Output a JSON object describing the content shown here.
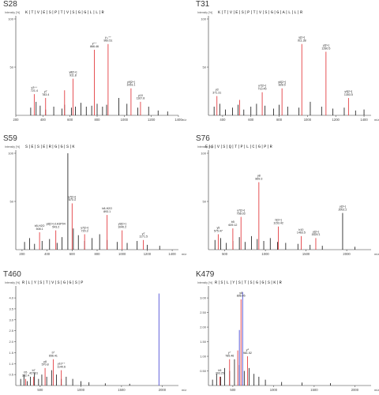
{
  "chart_data": [
    {
      "type": "bar",
      "title": "S28",
      "ylabel": "Intensity [%]",
      "sequence": "K|T|V|E|S|P|T|V|S|G|G|L|L|R",
      "x_ticks": [
        "200",
        "400",
        "600",
        "800",
        "1000",
        "1200",
        "1400"
      ],
      "x_unit": "m/z",
      "y_ticks": [
        "100",
        "50"
      ],
      "xlim": [
        200,
        1400
      ],
      "ylim": [
        0,
        100
      ],
      "peaks_black": [
        {
          "x": 310,
          "y": 8
        },
        {
          "x": 350,
          "y": 14
        },
        {
          "x": 380,
          "y": 10
        },
        {
          "x": 420,
          "y": 6
        },
        {
          "x": 480,
          "y": 9
        },
        {
          "x": 540,
          "y": 7
        },
        {
          "x": 560,
          "y": 11
        },
        {
          "x": 610,
          "y": 8
        },
        {
          "x": 640,
          "y": 9
        },
        {
          "x": 680,
          "y": 13
        },
        {
          "x": 720,
          "y": 9
        },
        {
          "x": 760,
          "y": 10
        },
        {
          "x": 800,
          "y": 12
        },
        {
          "x": 840,
          "y": 9
        },
        {
          "x": 870,
          "y": 11
        },
        {
          "x": 960,
          "y": 18
        },
        {
          "x": 1020,
          "y": 12
        },
        {
          "x": 1100,
          "y": 8
        },
        {
          "x": 1180,
          "y": 9
        },
        {
          "x": 1250,
          "y": 5
        },
        {
          "x": 1320,
          "y": 4
        }
      ],
      "peaks_red": [
        {
          "x": 336,
          "y": 22
        },
        {
          "x": 420,
          "y": 18
        },
        {
          "x": 560,
          "y": 26
        },
        {
          "x": 622,
          "y": 38
        },
        {
          "x": 780,
          "y": 68
        },
        {
          "x": 881,
          "y": 74
        },
        {
          "x": 1050,
          "y": 28
        },
        {
          "x": 1120,
          "y": 14
        }
      ],
      "annotations": [
        {
          "label": "y3⁺⁺",
          "val": "721.4",
          "x": 336,
          "y": 22
        },
        {
          "label": "y7",
          "val": "783.4",
          "x": 420,
          "y": 18
        },
        {
          "label": "y8[2+]",
          "val": "911.8",
          "x": 622,
          "y": 38
        },
        {
          "label": "y⁺⁺",
          "val": "866.46",
          "x": 780,
          "y": 68
        },
        {
          "label": "y₁₁⁺⁺",
          "val": "960.51",
          "x": 881,
          "y": 74
        },
        {
          "label": "y9[2+]",
          "val": "1053.1",
          "x": 1050,
          "y": 28
        },
        {
          "label": "y10",
          "val": "1167.8",
          "x": 1120,
          "y": 14
        }
      ]
    },
    {
      "type": "bar",
      "title": "T31",
      "ylabel": "Intensity [%]",
      "sequence": "K|T|V|E|S|P|T|V|S|G|G|A|L|L|R",
      "x_ticks": [
        "400",
        "600",
        "800",
        "1000",
        "1200",
        "1400"
      ],
      "x_unit": "m/z",
      "y_ticks": [
        "100",
        "50"
      ],
      "xlim": [
        300,
        1450
      ],
      "ylim": [
        0,
        100
      ],
      "peaks_black": [
        {
          "x": 340,
          "y": 9
        },
        {
          "x": 380,
          "y": 12
        },
        {
          "x": 420,
          "y": 6
        },
        {
          "x": 470,
          "y": 8
        },
        {
          "x": 510,
          "y": 11
        },
        {
          "x": 550,
          "y": 6
        },
        {
          "x": 600,
          "y": 9
        },
        {
          "x": 640,
          "y": 12
        },
        {
          "x": 700,
          "y": 10
        },
        {
          "x": 760,
          "y": 7
        },
        {
          "x": 800,
          "y": 11
        },
        {
          "x": 860,
          "y": 9
        },
        {
          "x": 940,
          "y": 8
        },
        {
          "x": 1020,
          "y": 14
        },
        {
          "x": 1100,
          "y": 9
        },
        {
          "x": 1180,
          "y": 7
        },
        {
          "x": 1260,
          "y": 8
        },
        {
          "x": 1340,
          "y": 5
        },
        {
          "x": 1400,
          "y": 6
        }
      ],
      "peaks_red": [
        {
          "x": 360,
          "y": 20
        },
        {
          "x": 520,
          "y": 16
        },
        {
          "x": 680,
          "y": 24
        },
        {
          "x": 820,
          "y": 28
        },
        {
          "x": 960,
          "y": 74
        },
        {
          "x": 1131,
          "y": 66
        },
        {
          "x": 1290,
          "y": 18
        }
      ],
      "annotations": [
        {
          "label": "y3",
          "val": "371.31",
          "x": 360,
          "y": 20
        },
        {
          "label": "y7[2+]",
          "val": "713.45",
          "x": 680,
          "y": 24
        },
        {
          "label": "y6[2+]",
          "val": "828.5",
          "x": 820,
          "y": 28
        },
        {
          "label": "y[2+]",
          "val": "911.38",
          "x": 960,
          "y": 74
        },
        {
          "label": "y[2+]",
          "val": "1280.5",
          "x": 1131,
          "y": 66
        },
        {
          "label": "y9[2+]",
          "val": "1353.5",
          "x": 1290,
          "y": 18
        }
      ]
    },
    {
      "type": "bar",
      "title": "S59",
      "ylabel": "Intensity [%]",
      "sequence": "S|E|S|E|R|G|G|S|K",
      "x_ticks": [
        "200",
        "400",
        "600",
        "800",
        "1000",
        "1200",
        "1400"
      ],
      "x_unit": "m/z",
      "y_ticks": [
        "100",
        "50"
      ],
      "xlim": [
        150,
        1450
      ],
      "ylim": [
        0,
        100
      ],
      "peaks_black": [
        {
          "x": 220,
          "y": 8
        },
        {
          "x": 260,
          "y": 12
        },
        {
          "x": 300,
          "y": 6
        },
        {
          "x": 360,
          "y": 9
        },
        {
          "x": 420,
          "y": 11
        },
        {
          "x": 480,
          "y": 7
        },
        {
          "x": 520,
          "y": 13
        },
        {
          "x": 566,
          "y": 100
        },
        {
          "x": 610,
          "y": 22
        },
        {
          "x": 650,
          "y": 15
        },
        {
          "x": 700,
          "y": 9
        },
        {
          "x": 760,
          "y": 12
        },
        {
          "x": 820,
          "y": 16
        },
        {
          "x": 880,
          "y": 10
        },
        {
          "x": 960,
          "y": 8
        },
        {
          "x": 1040,
          "y": 7
        },
        {
          "x": 1120,
          "y": 9
        },
        {
          "x": 1200,
          "y": 5
        },
        {
          "x": 1300,
          "y": 4
        }
      ],
      "peaks_red": [
        {
          "x": 340,
          "y": 18
        },
        {
          "x": 470,
          "y": 20
        },
        {
          "x": 600,
          "y": 48
        },
        {
          "x": 700,
          "y": 16
        },
        {
          "x": 880,
          "y": 36
        },
        {
          "x": 1000,
          "y": 20
        },
        {
          "x": 1170,
          "y": 10
        }
      ],
      "annotations": [
        {
          "label": "b5-H2O",
          "val": "508.1",
          "x": 340,
          "y": 18
        },
        {
          "label": "y8[2+]-1H3P04",
          "val": "543.2",
          "x": 470,
          "y": 20
        },
        {
          "label": "y7[2+]",
          "val": "670.3",
          "x": 600,
          "y": 48
        },
        {
          "label": "y7[2+]",
          "val": "720.3",
          "x": 700,
          "y": 16
        },
        {
          "label": "b8-H2O",
          "val": "893.1",
          "x": 880,
          "y": 36
        },
        {
          "label": "y9[2+]",
          "val": "1040.2",
          "x": 1000,
          "y": 20
        },
        {
          "label": "y7",
          "val": "1171.5",
          "x": 1170,
          "y": 10
        }
      ]
    },
    {
      "type": "bar",
      "title": "S76",
      "ylabel": "Intensity [%]",
      "sequence": "E|S|V|S|Q|T|P|L|C|G|P|R",
      "x_ticks": [
        "500",
        "1000",
        "1500",
        "2000"
      ],
      "x_unit": "m/z",
      "y_ticks": [
        "100",
        "50"
      ],
      "xlim": [
        300,
        2300
      ],
      "ylim": [
        0,
        100
      ],
      "peaks_black": [
        {
          "x": 380,
          "y": 10
        },
        {
          "x": 450,
          "y": 12
        },
        {
          "x": 520,
          "y": 7
        },
        {
          "x": 600,
          "y": 9
        },
        {
          "x": 680,
          "y": 13
        },
        {
          "x": 750,
          "y": 8
        },
        {
          "x": 830,
          "y": 14
        },
        {
          "x": 900,
          "y": 11
        },
        {
          "x": 980,
          "y": 9
        },
        {
          "x": 1060,
          "y": 12
        },
        {
          "x": 1150,
          "y": 8
        },
        {
          "x": 1250,
          "y": 7
        },
        {
          "x": 1400,
          "y": 6
        },
        {
          "x": 1550,
          "y": 5
        },
        {
          "x": 1700,
          "y": 4
        },
        {
          "x": 1950,
          "y": 38
        },
        {
          "x": 2100,
          "y": 3
        }
      ],
      "peaks_red": [
        {
          "x": 420,
          "y": 16
        },
        {
          "x": 600,
          "y": 22
        },
        {
          "x": 700,
          "y": 34
        },
        {
          "x": 920,
          "y": 70
        },
        {
          "x": 1160,
          "y": 24
        },
        {
          "x": 1440,
          "y": 14
        },
        {
          "x": 1620,
          "y": 12
        }
      ],
      "annotations": [
        {
          "label": "y5",
          "val": "575.47",
          "x": 420,
          "y": 16
        },
        {
          "label": "b5",
          "val": "609.12",
          "x": 600,
          "y": 22
        },
        {
          "label": "y7[2+]",
          "val": "758.03",
          "x": 700,
          "y": 34
        },
        {
          "label": "y8",
          "val": "869.3",
          "x": 920,
          "y": 70
        },
        {
          "label": "b[2+]",
          "val": "1153.42",
          "x": 1160,
          "y": 24
        },
        {
          "label": "b10",
          "val": "1463.5",
          "x": 1440,
          "y": 14
        },
        {
          "label": "y[2+]",
          "val": "1625.1",
          "x": 1620,
          "y": 12
        },
        {
          "label": "y[2+]",
          "val": "2002.2",
          "x": 1950,
          "y": 38
        }
      ]
    },
    {
      "type": "bar",
      "title": "T460",
      "ylabel": "Intensity [%]",
      "sequence": "R|L|Y|S|T|V|S|G|G|S|P",
      "x_ticks": [
        "500",
        "1000",
        "1500",
        "2000"
      ],
      "x_unit": "m/z",
      "y_ticks": [
        "4.0",
        "3.5",
        "3.0",
        "2.5",
        "2.0",
        "1.5",
        "1.0",
        "0.5"
      ],
      "xlim": [
        200,
        2200
      ],
      "ylim": [
        0,
        4.4
      ],
      "peaks_black": [
        {
          "x": 260,
          "y": 0.3
        },
        {
          "x": 300,
          "y": 0.5
        },
        {
          "x": 340,
          "y": 0.2
        },
        {
          "x": 380,
          "y": 0.4
        },
        {
          "x": 430,
          "y": 0.6
        },
        {
          "x": 480,
          "y": 0.3
        },
        {
          "x": 520,
          "y": 0.5
        },
        {
          "x": 580,
          "y": 0.4
        },
        {
          "x": 640,
          "y": 0.7
        },
        {
          "x": 700,
          "y": 0.5
        },
        {
          "x": 760,
          "y": 0.3
        },
        {
          "x": 820,
          "y": 0.4
        },
        {
          "x": 900,
          "y": 0.3
        },
        {
          "x": 1000,
          "y": 0.2
        },
        {
          "x": 1100,
          "y": 0.15
        },
        {
          "x": 1300,
          "y": 0.1
        },
        {
          "x": 1600,
          "y": 0.08
        }
      ],
      "peaks_red": [
        {
          "x": 320,
          "y": 0.3
        },
        {
          "x": 420,
          "y": 0.4
        },
        {
          "x": 560,
          "y": 0.8
        },
        {
          "x": 660,
          "y": 1.2
        },
        {
          "x": 760,
          "y": 0.7
        }
      ],
      "peaks_blue": [
        {
          "x": 1960,
          "y": 4.2
        }
      ],
      "annotations": [
        {
          "label": "b5",
          "val": "332.4",
          "x": 320,
          "y": 0.3
        },
        {
          "label": "b7",
          "val": "427.31",
          "x": 420,
          "y": 0.4
        },
        {
          "label": "y8",
          "val": "570.8",
          "x": 560,
          "y": 0.8
        },
        {
          "label": "b⁹",
          "val": "656.41",
          "x": 660,
          "y": 1.2
        },
        {
          "label": "y10⁺⁺",
          "val": "1140.6",
          "x": 760,
          "y": 0.7
        }
      ]
    },
    {
      "type": "bar",
      "title": "K479",
      "ylabel": "Intensity [%]",
      "sequence": "R|S|L|Y|S|T|S|G|G|S|K|R",
      "x_ticks": [
        "500",
        "1000",
        "1500",
        "2000"
      ],
      "x_unit": "m/z",
      "y_ticks": [
        "3.00",
        "2.50",
        "2.00",
        "1.50",
        "1.00",
        "0.50"
      ],
      "xlim": [
        200,
        2200
      ],
      "ylim": [
        0,
        3.3
      ],
      "peaks_black": [
        {
          "x": 250,
          "y": 0.2
        },
        {
          "x": 300,
          "y": 0.4
        },
        {
          "x": 350,
          "y": 0.3
        },
        {
          "x": 400,
          "y": 0.6
        },
        {
          "x": 460,
          "y": 0.5
        },
        {
          "x": 520,
          "y": 0.9
        },
        {
          "x": 580,
          "y": 0.7
        },
        {
          "x": 640,
          "y": 0.5
        },
        {
          "x": 700,
          "y": 0.6
        },
        {
          "x": 760,
          "y": 0.4
        },
        {
          "x": 820,
          "y": 0.3
        },
        {
          "x": 900,
          "y": 0.2
        },
        {
          "x": 1100,
          "y": 0.12
        },
        {
          "x": 1350,
          "y": 0.1
        },
        {
          "x": 1700,
          "y": 0.08
        }
      ],
      "peaks_red": [
        {
          "x": 340,
          "y": 0.3
        },
        {
          "x": 460,
          "y": 0.9
        },
        {
          "x": 560,
          "y": 1.2
        },
        {
          "x": 600,
          "y": 2.95
        },
        {
          "x": 680,
          "y": 1.0
        }
      ],
      "peaks_blue": [
        {
          "x": 580,
          "y": 1.9
        },
        {
          "x": 620,
          "y": 3.2
        }
      ],
      "annotations": [
        {
          "label": "b5",
          "val": "393.25",
          "x": 340,
          "y": 0.3
        },
        {
          "label": "y⁺",
          "val": "785.46",
          "x": 460,
          "y": 0.9
        },
        {
          "label": "y8",
          "val": "898.45",
          "x": 600,
          "y": 2.95
        },
        {
          "label": "y⁹",
          "val": "981.52",
          "x": 680,
          "y": 1.0
        }
      ]
    }
  ]
}
